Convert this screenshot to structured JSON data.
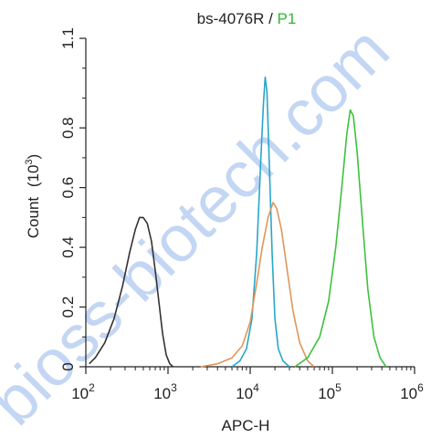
{
  "chart_data": {
    "type": "line",
    "title_parts": [
      {
        "text": "bs-4076R",
        "color": "#222222"
      },
      {
        "text": " / ",
        "color": "#222222"
      },
      {
        "text": "P1",
        "color": "#2fb82f"
      }
    ],
    "xlabel": "APC-H",
    "ylabel": "Count",
    "ylabel_unit": "(10",
    "ylabel_unit_exp": "3",
    "ylabel_unit_close": ")",
    "x_scale": "log",
    "xlim": [
      100,
      1000000
    ],
    "ylim": [
      0,
      1.1
    ],
    "x_ticks": [
      {
        "base": "10",
        "exp": "2"
      },
      {
        "base": "10",
        "exp": "3"
      },
      {
        "base": "10",
        "exp": "4"
      },
      {
        "base": "10",
        "exp": "5"
      },
      {
        "base": "10",
        "exp": "6"
      }
    ],
    "x_tick_values": [
      100,
      1000,
      10000,
      100000,
      1000000
    ],
    "y_ticks": [
      "0",
      "0.2",
      "0.4",
      "0.6",
      "0.8",
      "1.1"
    ],
    "y_tick_values": [
      0,
      0.2,
      0.4,
      0.6,
      0.8,
      1.1
    ],
    "grid": false,
    "series": [
      {
        "color": "#333333",
        "points": [
          [
            110,
            0.01
          ],
          [
            130,
            0.03
          ],
          [
            170,
            0.08
          ],
          [
            220,
            0.16
          ],
          [
            280,
            0.27
          ],
          [
            340,
            0.38
          ],
          [
            400,
            0.46
          ],
          [
            450,
            0.5
          ],
          [
            500,
            0.5
          ],
          [
            560,
            0.48
          ],
          [
            630,
            0.42
          ],
          [
            700,
            0.32
          ],
          [
            780,
            0.21
          ],
          [
            860,
            0.11
          ],
          [
            950,
            0.04
          ],
          [
            1050,
            0.01
          ],
          [
            1150,
            0.0
          ]
        ]
      },
      {
        "color": "#27a7c9",
        "points": [
          [
            6000,
            0.0
          ],
          [
            7500,
            0.02
          ],
          [
            9000,
            0.06
          ],
          [
            10500,
            0.16
          ],
          [
            12000,
            0.38
          ],
          [
            13500,
            0.7
          ],
          [
            14500,
            0.88
          ],
          [
            15200,
            0.97
          ],
          [
            16000,
            0.92
          ],
          [
            17000,
            0.7
          ],
          [
            18500,
            0.38
          ],
          [
            20000,
            0.16
          ],
          [
            22000,
            0.06
          ],
          [
            25000,
            0.02
          ],
          [
            30000,
            0.0
          ]
        ]
      },
      {
        "color": "#e0965a",
        "points": [
          [
            2500,
            0.0
          ],
          [
            4000,
            0.01
          ],
          [
            6000,
            0.03
          ],
          [
            8000,
            0.07
          ],
          [
            10000,
            0.15
          ],
          [
            12000,
            0.28
          ],
          [
            14000,
            0.4
          ],
          [
            16500,
            0.5
          ],
          [
            19000,
            0.55
          ],
          [
            21000,
            0.53
          ],
          [
            24000,
            0.46
          ],
          [
            28000,
            0.33
          ],
          [
            33000,
            0.19
          ],
          [
            40000,
            0.08
          ],
          [
            50000,
            0.02
          ],
          [
            60000,
            0.0
          ]
        ]
      },
      {
        "color": "#3fc03f",
        "points": [
          [
            35000,
            0.0
          ],
          [
            50000,
            0.03
          ],
          [
            70000,
            0.1
          ],
          [
            90000,
            0.22
          ],
          [
            110000,
            0.4
          ],
          [
            130000,
            0.6
          ],
          [
            150000,
            0.78
          ],
          [
            165000,
            0.86
          ],
          [
            180000,
            0.84
          ],
          [
            200000,
            0.72
          ],
          [
            230000,
            0.5
          ],
          [
            270000,
            0.26
          ],
          [
            320000,
            0.1
          ],
          [
            380000,
            0.03
          ],
          [
            450000,
            0.0
          ]
        ]
      }
    ]
  },
  "watermark": {
    "text": "bioss-biotech.com",
    "color": "#2a6fd6"
  }
}
